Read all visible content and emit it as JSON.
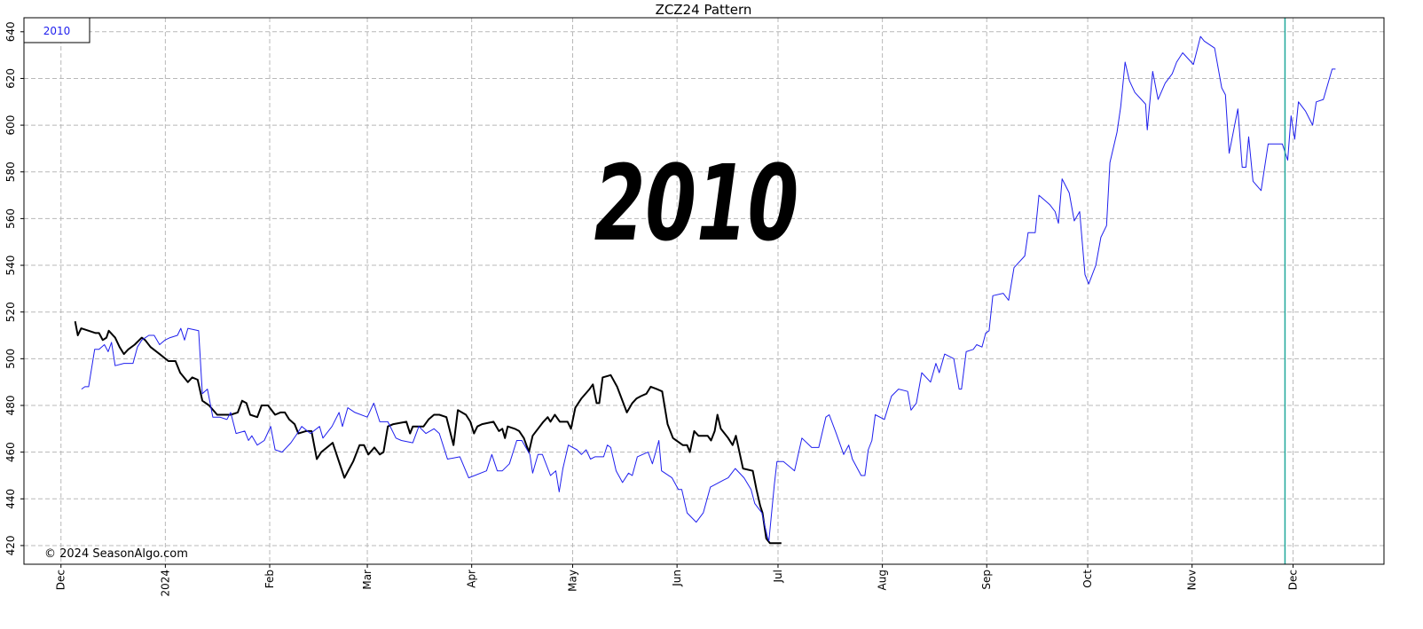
{
  "chart_data": {
    "type": "line",
    "title": "ZCZ24 Pattern",
    "watermark": "2010",
    "credit": "© 2024 SeasonAlgo.com",
    "xlim": [
      -11,
      393
    ],
    "ylim": [
      412,
      646
    ],
    "xticks": [
      {
        "value": 0,
        "label": "Dec"
      },
      {
        "value": 31,
        "label": "2024"
      },
      {
        "value": 62,
        "label": "Feb"
      },
      {
        "value": 91,
        "label": "Mar"
      },
      {
        "value": 122,
        "label": "Apr"
      },
      {
        "value": 152,
        "label": "May"
      },
      {
        "value": 183,
        "label": "Jun"
      },
      {
        "value": 213,
        "label": "Jul"
      },
      {
        "value": 244,
        "label": "Aug"
      },
      {
        "value": 275,
        "label": "Sep"
      },
      {
        "value": 305,
        "label": "Oct"
      },
      {
        "value": 336,
        "label": "Nov"
      },
      {
        "value": 366,
        "label": "Dec"
      }
    ],
    "yticks": [
      420,
      440,
      460,
      480,
      500,
      520,
      540,
      560,
      580,
      600,
      620,
      640
    ],
    "grid": true,
    "legend": "upper left",
    "vline": {
      "x": 363.6,
      "color": "#20a89a"
    },
    "series": [
      {
        "color": "#000000",
        "width": 2,
        "x": [
          4.2,
          5,
          6,
          8.2,
          10.3,
          11.3,
          12.4,
          13.5,
          14.2,
          16.1,
          17.4,
          18.7,
          20,
          21.9,
          24,
          25,
          26.6,
          29.3,
          31.9,
          34,
          35.4,
          37.7,
          39,
          40.6,
          42,
          44,
          46.4,
          47.8,
          50.4,
          52.5,
          53.8,
          55.1,
          56.2,
          58.3,
          59.6,
          61.5,
          63.6,
          65.2,
          66.5,
          67.8,
          69.4,
          70.5,
          72.8,
          74.4,
          76,
          77.3,
          80.7,
          84.2,
          86.8,
          88.7,
          90,
          91.3,
          93.1,
          94.7,
          95.8,
          97.1,
          98.7,
          102.6,
          103.7,
          104.5,
          105.8,
          107.7,
          109.2,
          110.8,
          112.4,
          114.5,
          116.6,
          117.9,
          120.3,
          121.6,
          122.7,
          123.7,
          125.1,
          128.5,
          130.1,
          131.1,
          131.9,
          132.7,
          134.8,
          136.1,
          137.5,
          139,
          140.1,
          143.3,
          144.6,
          145.4,
          146.7,
          148.2,
          150.5,
          151.5,
          152.8,
          154.6,
          157,
          158,
          159.1,
          159.9,
          160.9,
          163.3,
          165.2,
          168.1,
          169.7,
          171,
          172.3,
          173.9,
          175.2,
          177,
          178.6,
          180.2,
          181.8,
          184.7,
          186,
          186.8,
          188.1,
          189.4,
          192.1,
          193.1,
          194.2,
          195,
          196,
          198.2,
          199.5,
          200.5,
          202.6,
          205.5,
          206.6,
          207.7,
          208.4,
          209.5,
          210.6,
          214
        ],
        "values": [
          516,
          510,
          513,
          512,
          511,
          511,
          508,
          509,
          512,
          509,
          505,
          502,
          504,
          506,
          509,
          508,
          505,
          502,
          499,
          499,
          494,
          490,
          492,
          491,
          482,
          480,
          476,
          476,
          476,
          477,
          482,
          481,
          476,
          475,
          480,
          480,
          476,
          477,
          477,
          474,
          472,
          468,
          469,
          469,
          457,
          460,
          464,
          449,
          456,
          463,
          463,
          459,
          462,
          459,
          460,
          471,
          472,
          473,
          468,
          471,
          471,
          471,
          474,
          476,
          476,
          475,
          463,
          478,
          476,
          473,
          468,
          471,
          472,
          473,
          469,
          470,
          466,
          471,
          470,
          469,
          466,
          460,
          467,
          473,
          475,
          473,
          476,
          473,
          473,
          470,
          479,
          483,
          487,
          489,
          481,
          481,
          492,
          493,
          488,
          477,
          481,
          483,
          484,
          485,
          488,
          487,
          486,
          472,
          466,
          463,
          463,
          460,
          469,
          467,
          467,
          465,
          469,
          476,
          470,
          466,
          463,
          467,
          453,
          452,
          444,
          437,
          434,
          423,
          421,
          421
        ]
      },
      {
        "name": "2010",
        "color": "#1f1fee",
        "width": 1,
        "x": [
          6.1,
          7.1,
          8.2,
          10,
          11.3,
          12.9,
          14,
          15,
          16.1,
          18.7,
          20.6,
          21.4,
          22.7,
          24,
          26.1,
          27.7,
          29.3,
          30.9,
          32.4,
          34.6,
          35.6,
          36.7,
          37.7,
          40.9,
          42,
          43.5,
          45.1,
          47.2,
          49.3,
          50.4,
          52,
          54.6,
          55.7,
          56.7,
          58.3,
          60.4,
          62.3,
          63.6,
          65.7,
          68.3,
          70.2,
          71.5,
          74.1,
          76.8,
          77.8,
          80.5,
          82.6,
          83.6,
          85.2,
          87.3,
          91,
          92.9,
          94.7,
          97.1,
          99.5,
          101.1,
          104.5,
          106.3,
          108.4,
          110.8,
          112.4,
          114.8,
          118.5,
          121.1,
          126.4,
          128,
          129.6,
          131.1,
          133.2,
          135.4,
          136.9,
          139.3,
          140.1,
          141.7,
          143,
          145.4,
          147,
          148,
          149.1,
          150.7,
          153.3,
          154.6,
          156,
          157.3,
          158.6,
          161.2,
          162.3,
          163.3,
          164.9,
          166.8,
          168.6,
          169.7,
          171.2,
          174.4,
          175.7,
          177.6,
          178.4,
          181.5,
          183.4,
          184.4,
          186,
          188.7,
          190.8,
          192.9,
          196.8,
          198.2,
          200.3,
          202.9,
          205,
          206.1,
          208.2,
          209.8,
          210.3,
          211.9,
          212.7,
          214.6,
          217.9,
          220.1,
          223,
          225.1,
          227.2,
          228.2,
          230.3,
          232.5,
          234,
          235.1,
          237.7,
          238.8,
          239.8,
          240.9,
          241.9,
          244.6,
          246.7,
          248.8,
          251.5,
          252.5,
          254.1,
          255.7,
          258.3,
          259.9,
          260.9,
          262.5,
          265.2,
          266.8,
          267.5,
          268.9,
          271,
          272,
          273.6,
          274.7,
          275.7,
          276.8,
          279.9,
          281.5,
          283.1,
          286.3,
          287.3,
          289.4,
          290.5,
          292.1,
          293.7,
          295.3,
          296.3,
          297.4,
          299.5,
          301,
          302.6,
          304.2,
          305.3,
          307.4,
          308.9,
          310.6,
          311.6,
          313.7,
          314.8,
          316.1,
          317.4,
          319,
          322.2,
          322.7,
          324.3,
          325.9,
          328,
          330.1,
          331.4,
          333.2,
          336.4,
          338.5,
          339.6,
          342.7,
          344.8,
          345.9,
          347,
          349.6,
          350.9,
          352,
          352.8,
          354.1,
          356.5,
          358.6,
          362.8,
          364.4,
          365.4,
          366.5,
          367.6,
          369.7,
          371.8,
          372.9,
          375,
          377.6,
          378.6
        ],
        "values": [
          487,
          488,
          488,
          504,
          504,
          506,
          503,
          507,
          497,
          498,
          498,
          498,
          505,
          508,
          510,
          510,
          506,
          508,
          509,
          510,
          513,
          508,
          513,
          512,
          485,
          487,
          475,
          475,
          474,
          477,
          468,
          469,
          465,
          467,
          463,
          465,
          471,
          461,
          460,
          464,
          468,
          471,
          468,
          471,
          466,
          471,
          477,
          471,
          479,
          477,
          475,
          481,
          473,
          473,
          466,
          465,
          464,
          471,
          468,
          470,
          468,
          457,
          458,
          449,
          452,
          459,
          452,
          452,
          455,
          465,
          465,
          459,
          451,
          459,
          459,
          450,
          452,
          443,
          453,
          463,
          461,
          459,
          461,
          457,
          458,
          458,
          463,
          462,
          452,
          447,
          451,
          450,
          458,
          460,
          455,
          465,
          452,
          449,
          444,
          444,
          434,
          430,
          434,
          445,
          448,
          449,
          453,
          449,
          444,
          438,
          434,
          424,
          422,
          446,
          456,
          456,
          452,
          466,
          462,
          462,
          475,
          476,
          468,
          459,
          463,
          457,
          450,
          450,
          461,
          465,
          476,
          474,
          484,
          487,
          486,
          478,
          481,
          494,
          490,
          498,
          494,
          502,
          500,
          487,
          487,
          503,
          504,
          506,
          505,
          511,
          512,
          527,
          528,
          525,
          539,
          544,
          554,
          554,
          570,
          568,
          566,
          563,
          558,
          577,
          571,
          559,
          563,
          536,
          532,
          540,
          552,
          557,
          584,
          597,
          608,
          627,
          619,
          614,
          609,
          598,
          623,
          611,
          618,
          622,
          627,
          631,
          626,
          638,
          636,
          633,
          616,
          613,
          588,
          607,
          582,
          582,
          595,
          576,
          572,
          592,
          592,
          585,
          604,
          594,
          610,
          606,
          600,
          610,
          611,
          624,
          624
        ]
      }
    ]
  }
}
